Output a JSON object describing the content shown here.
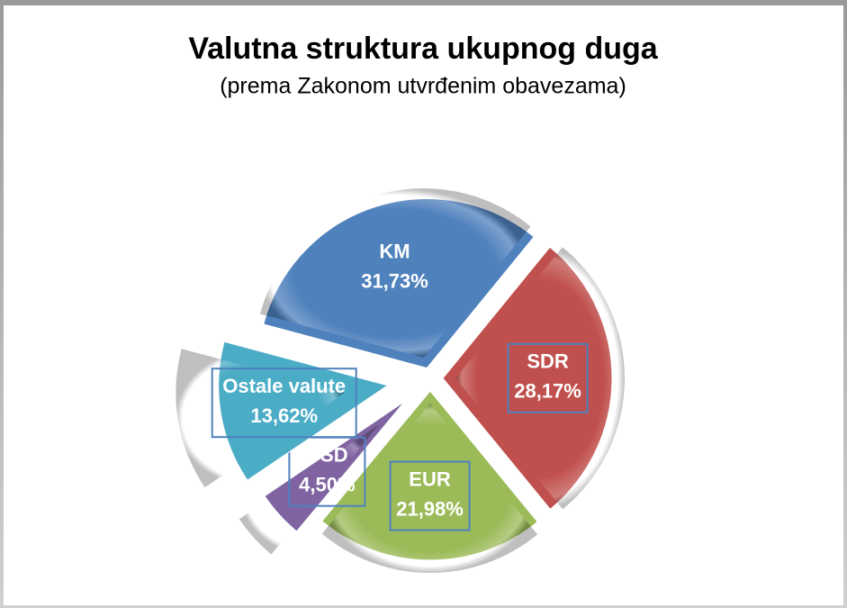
{
  "chart_data": {
    "type": "pie",
    "title": "Valutna struktura ukupnog duga",
    "subtitle": "(prema Zakonom utvrđenim obavezama)",
    "categories": [
      "KM",
      "SDR",
      "EUR",
      "USD",
      "Ostale valute"
    ],
    "values": [
      31.73,
      28.17,
      21.98,
      4.5,
      13.62
    ],
    "value_labels": [
      "31,73%",
      "28,17%",
      "21,98%",
      "4,50%",
      "13,62%"
    ],
    "colors": [
      "#4f81bd",
      "#c0504d",
      "#9bbb59",
      "#8064a2",
      "#4bacc6"
    ]
  }
}
